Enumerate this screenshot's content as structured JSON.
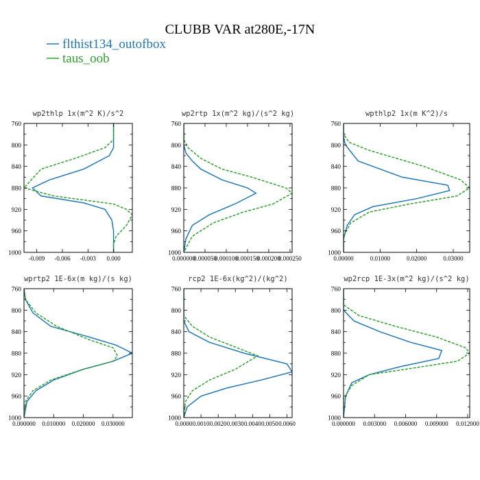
{
  "chart_data": {
    "type": "line",
    "title": "CLUBB VAR at280E,-17N",
    "legend_position": "top-left",
    "series_styles": [
      {
        "name": "flthist134_outofbox",
        "color": "#1f77b4",
        "dash": "solid"
      },
      {
        "name": "taus_oob",
        "color": "#2ca02c",
        "dash": "dashed"
      }
    ],
    "y_axis": {
      "range": [
        760,
        1000
      ],
      "inverted": true,
      "ticks": [
        760,
        800,
        840,
        880,
        920,
        960,
        1000
      ]
    },
    "panels": [
      {
        "title": "wp2thlp   1x(m^2 K)/s^2",
        "xlim": [
          -0.0105,
          0.0022
        ],
        "xticks": [
          -0.009,
          -0.006,
          -0.003,
          0.0
        ],
        "xtick_labels": [
          "-0.009",
          "-0.006",
          "-0.003",
          "0.000"
        ],
        "series": [
          {
            "name": "flthist134_outofbox",
            "points": [
              [
                0.0,
                755
              ],
              [
                0.0,
                790
              ],
              [
                0.0,
                805
              ],
              [
                -0.0005,
                820
              ],
              [
                -0.0035,
                845
              ],
              [
                -0.0075,
                865
              ],
              [
                -0.0095,
                880
              ],
              [
                -0.0085,
                895
              ],
              [
                -0.0035,
                908
              ],
              [
                -0.001,
                920
              ],
              [
                -0.0002,
                940
              ],
              [
                0.0,
                960
              ],
              [
                0.0,
                980
              ],
              [
                0.0,
                1000
              ]
            ]
          },
          {
            "name": "taus_oob",
            "points": [
              [
                0.0,
                755
              ],
              [
                0.0,
                790
              ],
              [
                -0.001,
                805
              ],
              [
                -0.0045,
                825
              ],
              [
                -0.0085,
                845
              ],
              [
                -0.0105,
                880
              ],
              [
                -0.007,
                895
              ],
              [
                0.0,
                910
              ],
              [
                0.0015,
                920
              ],
              [
                0.0022,
                930
              ],
              [
                0.0015,
                950
              ],
              [
                0.0003,
                970
              ],
              [
                0.0,
                985
              ],
              [
                0.0,
                1000
              ]
            ]
          }
        ]
      },
      {
        "title": "wp2rtp   1x(m^2 kg)/(s^2 kg)",
        "xlim": [
          0,
          0.000255
        ],
        "xticks": [
          0,
          5e-05,
          0.0001,
          0.00015,
          0.0002,
          0.00025
        ],
        "xtick_labels": [
          "0.000000",
          "0.000050",
          "0.000100",
          "0.000150",
          "0.000200",
          "0.000250"
        ],
        "series": [
          {
            "name": "flthist134_outofbox",
            "points": [
              [
                0.0,
                760
              ],
              [
                0.0,
                800
              ],
              [
                5e-06,
                815
              ],
              [
                2e-05,
                830
              ],
              [
                4e-05,
                845
              ],
              [
                9e-05,
                865
              ],
              [
                0.00015,
                880
              ],
              [
                0.00017,
                890
              ],
              [
                0.00012,
                910
              ],
              [
                6e-05,
                930
              ],
              [
                2e-05,
                950
              ],
              [
                5e-06,
                975
              ],
              [
                0.0,
                1000
              ]
            ]
          },
          {
            "name": "taus_oob",
            "points": [
              [
                0.0,
                760
              ],
              [
                0.0,
                790
              ],
              [
                1e-05,
                805
              ],
              [
                4e-05,
                825
              ],
              [
                9e-05,
                845
              ],
              [
                0.00016,
                860
              ],
              [
                0.00024,
                880
              ],
              [
                0.000255,
                890
              ],
              [
                0.00021,
                910
              ],
              [
                0.00014,
                925
              ],
              [
                7e-05,
                945
              ],
              [
                2e-05,
                970
              ],
              [
                0.0,
                1000
              ]
            ]
          }
        ]
      },
      {
        "title": "wpthlp2   1x(m K^2)/s",
        "xlim": [
          0,
          0.0345
        ],
        "xticks": [
          0,
          0.01,
          0.02,
          0.03
        ],
        "xtick_labels": [
          "0.00000",
          "0.01000",
          "0.02000",
          "0.03000"
        ],
        "series": [
          {
            "name": "flthist134_outofbox",
            "points": [
              [
                0.0,
                760
              ],
              [
                0.0,
                785
              ],
              [
                0.0005,
                800
              ],
              [
                0.004,
                830
              ],
              [
                0.016,
                860
              ],
              [
                0.0285,
                875
              ],
              [
                0.029,
                885
              ],
              [
                0.02,
                900
              ],
              [
                0.008,
                915
              ],
              [
                0.003,
                930
              ],
              [
                0.001,
                950
              ],
              [
                0.0,
                975
              ],
              [
                0.0,
                1000
              ]
            ]
          },
          {
            "name": "taus_oob",
            "points": [
              [
                0.0,
                760
              ],
              [
                0.0,
                780
              ],
              [
                0.0015,
                795
              ],
              [
                0.007,
                810
              ],
              [
                0.022,
                840
              ],
              [
                0.032,
                865
              ],
              [
                0.0345,
                880
              ],
              [
                0.031,
                895
              ],
              [
                0.018,
                910
              ],
              [
                0.007,
                925
              ],
              [
                0.002,
                945
              ],
              [
                0.0,
                970
              ],
              [
                0.0,
                1000
              ]
            ]
          }
        ]
      },
      {
        "title": "wprtp2   1E-6x(m kg)/(s kg)",
        "xlim": [
          0,
          0.0365
        ],
        "xticks": [
          0,
          0.01,
          0.02,
          0.03
        ],
        "xtick_labels": [
          "0.000000",
          "0.010000",
          "0.020000",
          "0.030000"
        ],
        "series": [
          {
            "name": "flthist134_outofbox",
            "points": [
              [
                0.0,
                760
              ],
              [
                0.0005,
                780
              ],
              [
                0.003,
                805
              ],
              [
                0.009,
                830
              ],
              [
                0.022,
                850
              ],
              [
                0.031,
                865
              ],
              [
                0.0365,
                880
              ],
              [
                0.03,
                895
              ],
              [
                0.02,
                910
              ],
              [
                0.01,
                930
              ],
              [
                0.004,
                950
              ],
              [
                0.001,
                970
              ],
              [
                0.0,
                1000
              ]
            ]
          },
          {
            "name": "taus_oob",
            "points": [
              [
                0.0,
                760
              ],
              [
                0.0005,
                780
              ],
              [
                0.004,
                805
              ],
              [
                0.011,
                830
              ],
              [
                0.022,
                855
              ],
              [
                0.03,
                870
              ],
              [
                0.0315,
                885
              ],
              [
                0.03,
                895
              ],
              [
                0.02,
                910
              ],
              [
                0.009,
                930
              ],
              [
                0.003,
                950
              ],
              [
                0.0005,
                970
              ],
              [
                0.0,
                1000
              ]
            ]
          }
        ]
      },
      {
        "title": "rcp2   1E-6x(kg^2)/(kg^2)",
        "xlim": [
          0,
          0.0063
        ],
        "xticks": [
          0,
          0.001,
          0.002,
          0.003,
          0.004,
          0.005,
          0.006
        ],
        "xtick_labels": [
          "0.0000",
          "0.0010",
          "0.0020",
          "0.0030",
          "0.0040",
          "0.0050",
          "0.0060"
        ],
        "series": [
          {
            "name": "flthist134_outofbox",
            "points": [
              [
                0.0,
                760
              ],
              [
                0.0,
                820
              ],
              [
                0.0003,
                840
              ],
              [
                0.0015,
                860
              ],
              [
                0.0035,
                880
              ],
              [
                0.006,
                900
              ],
              [
                0.0063,
                915
              ],
              [
                0.0045,
                930
              ],
              [
                0.0025,
                945
              ],
              [
                0.001,
                960
              ],
              [
                0.0002,
                980
              ],
              [
                0.0,
                1000
              ]
            ]
          },
          {
            "name": "taus_oob",
            "points": [
              [
                0.0,
                760
              ],
              [
                0.0,
                810
              ],
              [
                0.0005,
                830
              ],
              [
                0.0015,
                850
              ],
              [
                0.0035,
                875
              ],
              [
                0.0043,
                885
              ],
              [
                0.003,
                910
              ],
              [
                0.0015,
                930
              ],
              [
                0.0005,
                950
              ],
              [
                0.0001,
                970
              ],
              [
                0.0,
                1000
              ]
            ]
          }
        ]
      },
      {
        "title": "wp2rcp   1E-3x(m^2 kg)/(s^2 kg)",
        "xlim": [
          0,
          0.0122
        ],
        "xticks": [
          0,
          0.003,
          0.006,
          0.009,
          0.012
        ],
        "xtick_labels": [
          "0.000000",
          "0.003000",
          "0.006000",
          "0.009000",
          "0.012000"
        ],
        "series": [
          {
            "name": "flthist134_outofbox",
            "points": [
              [
                0.0,
                760
              ],
              [
                0.0,
                800
              ],
              [
                0.001,
                820
              ],
              [
                0.0035,
                840
              ],
              [
                0.0065,
                860
              ],
              [
                0.0095,
                875
              ],
              [
                0.0092,
                890
              ],
              [
                0.0055,
                905
              ],
              [
                0.0025,
                920
              ],
              [
                0.0008,
                935
              ],
              [
                0.0002,
                960
              ],
              [
                0.0,
                1000
              ]
            ]
          },
          {
            "name": "taus_oob",
            "points": [
              [
                0.0,
                760
              ],
              [
                0.0,
                790
              ],
              [
                0.0015,
                810
              ],
              [
                0.005,
                830
              ],
              [
                0.009,
                850
              ],
              [
                0.0118,
                870
              ],
              [
                0.0122,
                880
              ],
              [
                0.011,
                895
              ],
              [
                0.006,
                910
              ],
              [
                0.0025,
                920
              ],
              [
                0.0008,
                940
              ],
              [
                0.0,
                965
              ],
              [
                0.0,
                1000
              ]
            ]
          }
        ]
      }
    ]
  }
}
